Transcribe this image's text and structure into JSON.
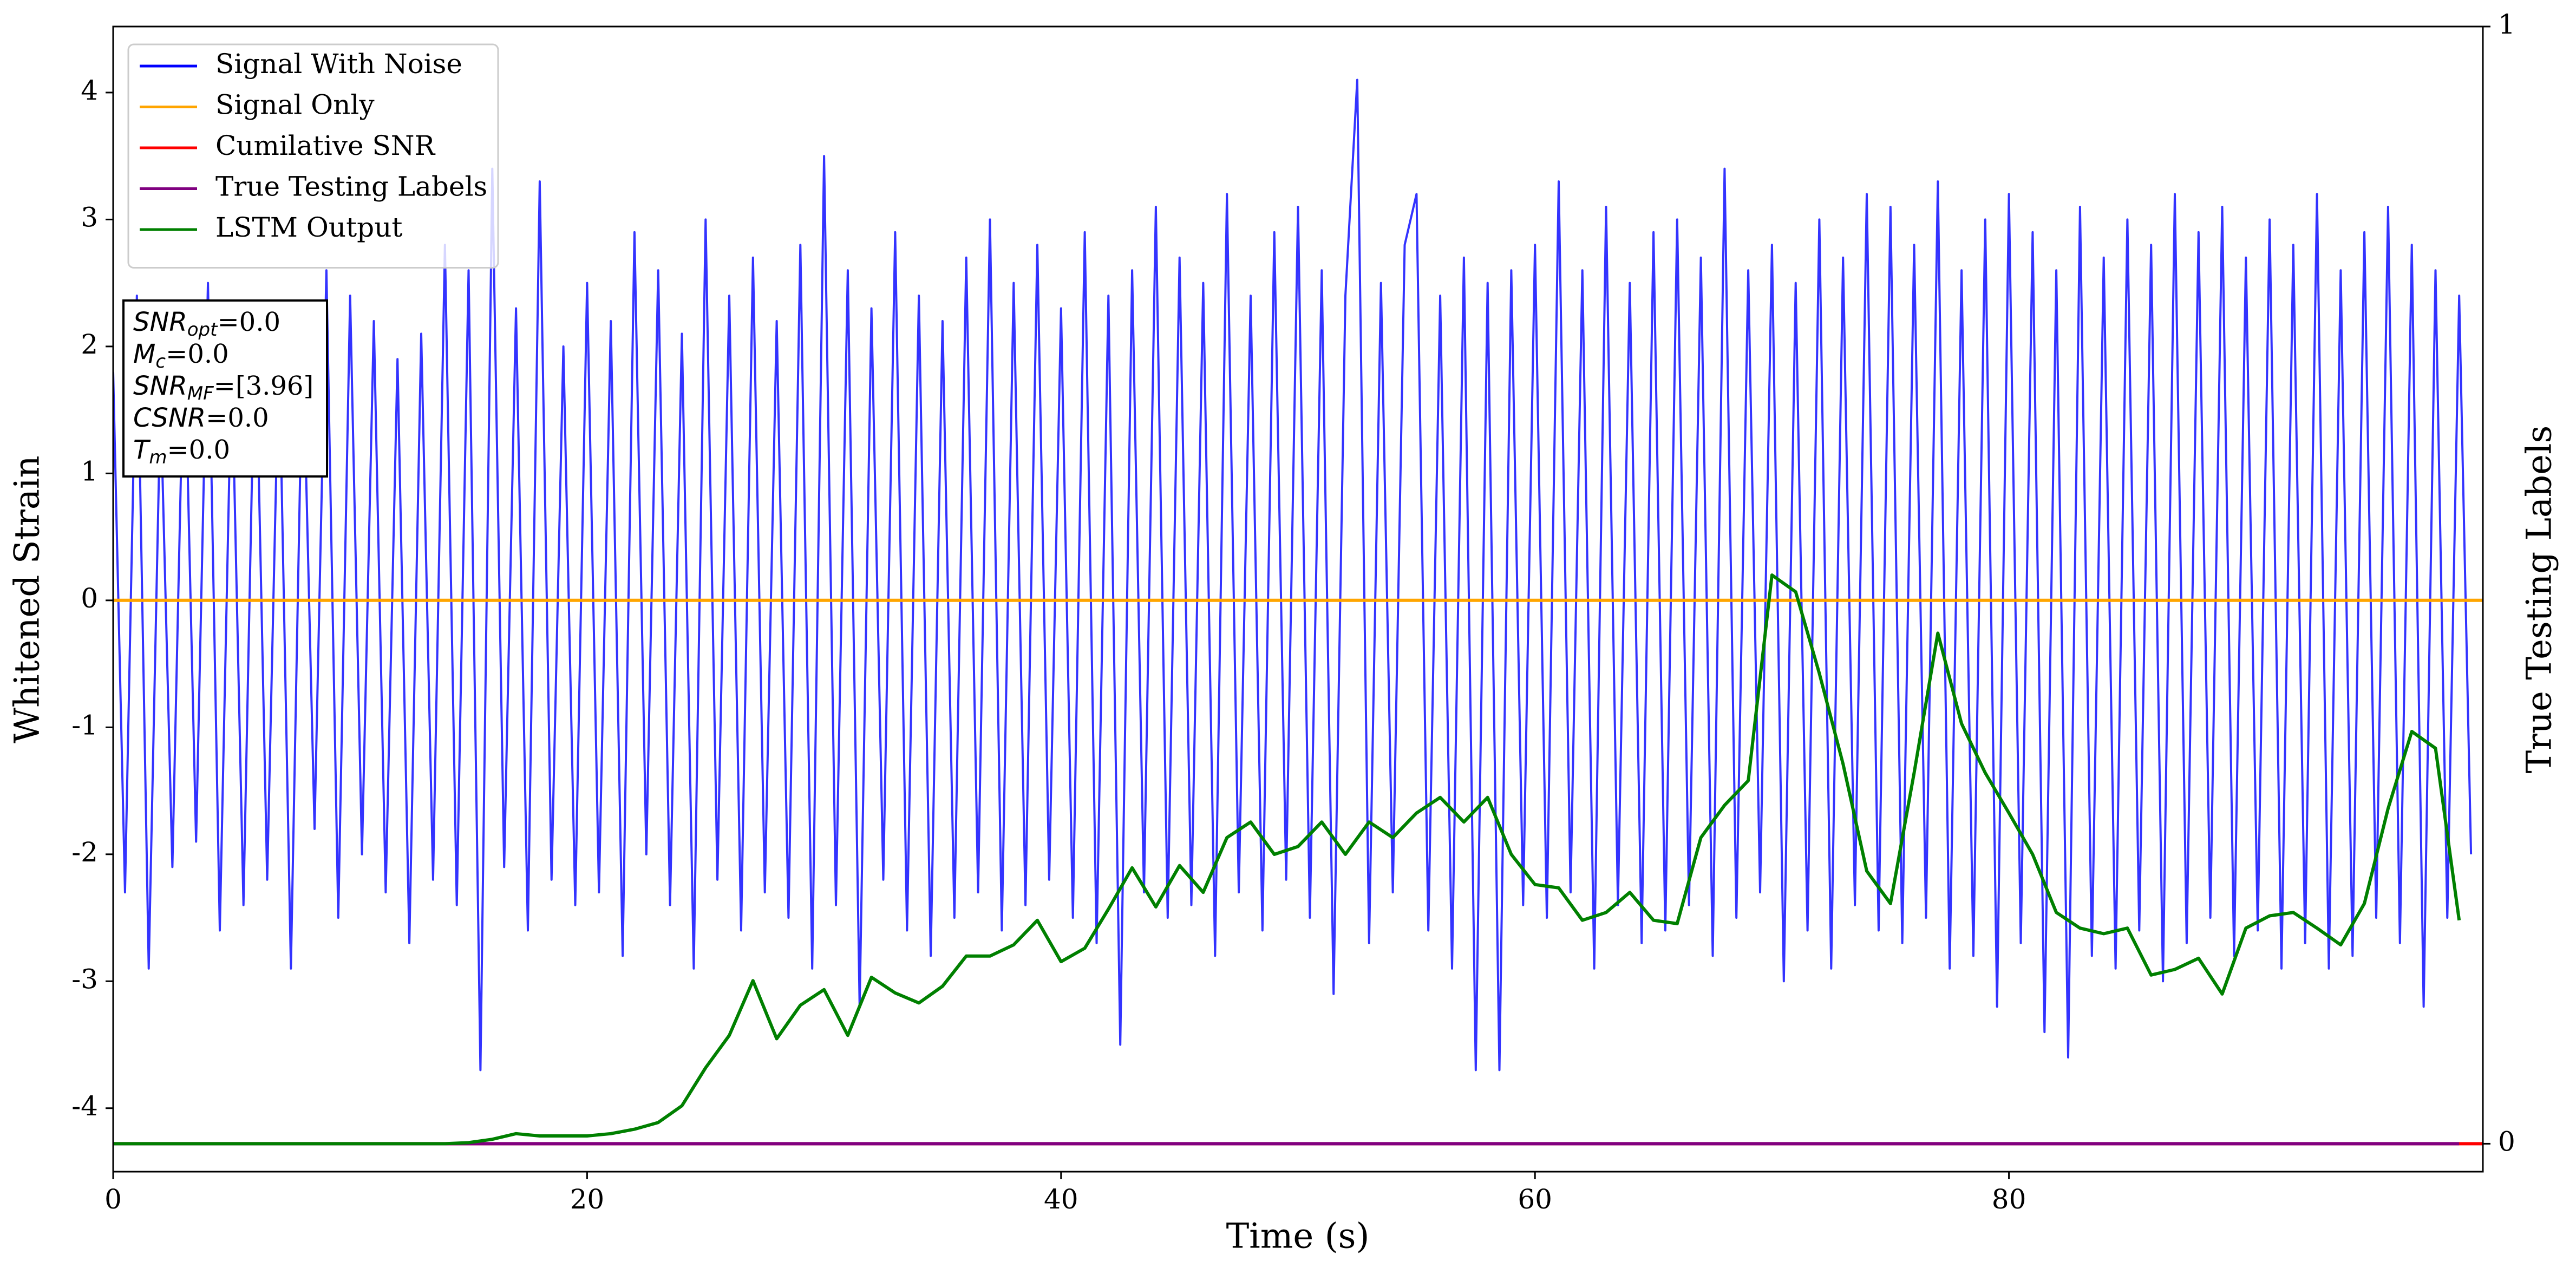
{
  "chart_data": {
    "type": "line",
    "xlabel": "Time (s)",
    "ylabel": "Whitened Strain",
    "y2label": "True Testing Labels",
    "xlim": [
      0,
      100
    ],
    "xticks": [
      0,
      20,
      40,
      60,
      80
    ],
    "ylim": [
      -4.5,
      4.52
    ],
    "yticks": [
      -4,
      -3,
      -2,
      -1,
      0,
      1,
      2,
      3,
      4
    ],
    "y2lim": [
      -0.025,
      1
    ],
    "y2ticks": [
      0,
      1
    ],
    "grid": false,
    "legend": "upper left",
    "annotation": [
      {
        "base": "SNR",
        "sub": "opt",
        "rest": "=0.0"
      },
      {
        "base": "M",
        "sub": "c",
        "rest": "=0.0"
      },
      {
        "base": "SNR",
        "sub": "MF",
        "rest": "=[3.96]"
      },
      {
        "base": "CSNR",
        "rest": "=0.0"
      },
      {
        "base": "T",
        "sub": "m",
        "rest": "=0.0"
      }
    ],
    "series": [
      {
        "name": "Signal With Noise",
        "color": "blue",
        "x": [
          0,
          0.5,
          1,
          1.5,
          2,
          2.5,
          3,
          3.5,
          4,
          4.5,
          5,
          5.5,
          6,
          6.5,
          7,
          7.5,
          8,
          8.5,
          9,
          9.5,
          10,
          10.5,
          11,
          11.5,
          12,
          12.5,
          13,
          13.5,
          14,
          14.5,
          15,
          15.5,
          16,
          16.5,
          17,
          17.5,
          18,
          18.5,
          19,
          19.5,
          20,
          20.5,
          21,
          21.5,
          22,
          22.5,
          23,
          23.5,
          24,
          24.5,
          25,
          25.5,
          26,
          26.5,
          27,
          27.5,
          28,
          28.5,
          29,
          29.5,
          30,
          30.5,
          31,
          31.5,
          32,
          32.5,
          33,
          33.5,
          34,
          34.5,
          35,
          35.5,
          36,
          36.5,
          37,
          37.5,
          38,
          38.5,
          39,
          39.5,
          40,
          40.5,
          41,
          41.5,
          42,
          42.5,
          43,
          43.5,
          44,
          44.5,
          45,
          45.5,
          46,
          46.5,
          47,
          47.5,
          48,
          48.5,
          49,
          49.5,
          50,
          50.5,
          51,
          51.5,
          52,
          52.5,
          53,
          53.5,
          54,
          54.5,
          55,
          55.5,
          56,
          56.5,
          57,
          57.5,
          58,
          58.5,
          59,
          59.5,
          60,
          60.5,
          61,
          61.5,
          62,
          62.5,
          63,
          63.5,
          64,
          64.5,
          65,
          65.5,
          66,
          66.5,
          67,
          67.5,
          68,
          68.5,
          69,
          69.5,
          70,
          70.5,
          71,
          71.5,
          72,
          72.5,
          73,
          73.5,
          74,
          74.5,
          75,
          75.5,
          76,
          76.5,
          77,
          77.5,
          78,
          78.5,
          79,
          79.5,
          80,
          80.5,
          81,
          81.5,
          82,
          82.5,
          83,
          83.5,
          84,
          84.5,
          85,
          85.5,
          86,
          86.5,
          87,
          87.5,
          88,
          88.5,
          89,
          89.5,
          90,
          90.5,
          91,
          91.5,
          92,
          92.5,
          93,
          93.5,
          94,
          94.5,
          95,
          95.5,
          96,
          96.5,
          97,
          97.5,
          98,
          98.5,
          99,
          99.5
        ],
        "values": [
          1.8,
          -2.3,
          2.4,
          -2.9,
          1.6,
          -2.1,
          2.2,
          -1.9,
          2.5,
          -2.6,
          1.9,
          -2.4,
          2.3,
          -2.2,
          2.0,
          -2.9,
          2.1,
          -1.8,
          2.6,
          -2.5,
          2.4,
          -2.0,
          2.2,
          -2.3,
          1.9,
          -2.7,
          2.1,
          -2.2,
          2.8,
          -2.4,
          2.6,
          -3.7,
          3.4,
          -2.1,
          2.3,
          -2.6,
          3.3,
          -2.2,
          2.0,
          -2.4,
          2.5,
          -2.3,
          2.2,
          -2.8,
          2.9,
          -2.0,
          2.6,
          -2.4,
          2.1,
          -2.9,
          3.0,
          -2.2,
          2.4,
          -2.6,
          2.7,
          -2.3,
          2.2,
          -2.5,
          2.8,
          -2.9,
          3.5,
          -2.4,
          2.6,
          -3.2,
          2.3,
          -2.2,
          2.9,
          -2.6,
          2.4,
          -2.8,
          2.2,
          -2.5,
          2.7,
          -2.3,
          3.0,
          -2.6,
          2.5,
          -2.4,
          2.8,
          -2.2,
          2.3,
          -2.5,
          2.9,
          -2.7,
          2.4,
          -3.5,
          2.6,
          -2.3,
          3.1,
          -2.5,
          2.7,
          -2.4,
          2.5,
          -2.8,
          3.2,
          -2.3,
          2.4,
          -2.6,
          2.9,
          -2.2,
          3.1,
          -2.5,
          2.6,
          -3.1,
          2.4,
          4.1,
          -2.7,
          2.5,
          -2.3,
          2.8,
          3.2,
          -2.6,
          2.4,
          -2.9,
          2.7,
          -3.7,
          2.5,
          -3.7,
          2.6,
          -2.4,
          2.8,
          -2.5,
          3.3,
          -2.3,
          2.6,
          -2.9,
          3.1,
          -2.4,
          2.5,
          -2.7,
          2.9,
          -2.6,
          3.0,
          -2.4,
          2.7,
          -2.8,
          3.4,
          -2.5,
          2.6,
          -2.3,
          2.8,
          -3.0,
          2.5,
          -2.6,
          3.0,
          -2.9,
          2.7,
          -2.4,
          3.2,
          -2.6,
          3.1,
          -2.7,
          2.8,
          -2.5,
          3.3,
          -2.9,
          2.6,
          -2.8,
          3.0,
          -3.2,
          3.2,
          -2.7,
          2.9,
          -3.4,
          2.6,
          -3.6,
          3.1,
          -2.8,
          2.7,
          -2.9,
          3.0,
          -2.6,
          2.8,
          -3.0,
          3.2,
          -2.7,
          2.9,
          -2.5,
          3.1,
          -2.8,
          2.7,
          -2.6,
          3.0,
          -2.9,
          2.8,
          -2.7,
          3.2,
          -2.9,
          2.6,
          -2.8,
          2.9,
          -2.5,
          3.1,
          -2.7,
          2.8,
          -3.2,
          2.6,
          -2.5,
          2.4,
          -2.0
        ]
      },
      {
        "name": "Signal Only",
        "color": "orange",
        "x": [
          0,
          100
        ],
        "values": [
          0,
          0
        ]
      },
      {
        "name": "Cumilative SNR",
        "color": "red",
        "axis": "y2",
        "x": [
          0,
          100
        ],
        "values": [
          0,
          0
        ]
      },
      {
        "name": "True Testing Labels",
        "color": "purple",
        "axis": "y2",
        "x": [
          0,
          99
        ],
        "values": [
          0,
          0
        ]
      },
      {
        "name": "LSTM Output",
        "color": "green",
        "axis": "y2",
        "x": [
          0,
          1,
          2,
          3,
          4,
          5,
          6,
          7,
          8,
          9,
          10,
          11,
          12,
          13,
          14,
          15,
          16,
          17,
          18,
          19,
          20,
          21,
          22,
          23,
          24,
          25,
          26,
          27,
          28,
          29,
          30,
          31,
          32,
          33,
          34,
          35,
          36,
          37,
          38,
          39,
          40,
          41,
          42,
          43,
          44,
          45,
          46,
          47,
          48,
          49,
          50,
          51,
          52,
          53,
          54,
          55,
          56,
          57,
          58,
          59,
          60,
          61,
          62,
          63,
          64,
          65,
          66,
          67,
          68,
          69,
          70,
          71,
          72,
          73,
          74,
          75,
          76,
          77,
          78,
          79,
          80,
          81,
          82,
          83,
          84,
          85,
          86,
          87,
          88,
          89,
          90,
          91,
          92,
          93,
          94,
          95,
          96,
          97,
          98,
          99
        ],
        "values": [
          0,
          0,
          0,
          0,
          0,
          0,
          0,
          0,
          0,
          0,
          0,
          0,
          0,
          0,
          0,
          0.001,
          0.004,
          0.009,
          0.007,
          0.007,
          0.007,
          0.009,
          0.013,
          0.019,
          0.034,
          0.068,
          0.097,
          0.146,
          0.094,
          0.124,
          0.138,
          0.097,
          0.149,
          0.135,
          0.126,
          0.141,
          0.168,
          0.168,
          0.178,
          0.2,
          0.163,
          0.175,
          0.21,
          0.247,
          0.212,
          0.249,
          0.225,
          0.274,
          0.288,
          0.259,
          0.266,
          0.288,
          0.259,
          0.288,
          0.274,
          0.296,
          0.31,
          0.288,
          0.31,
          0.259,
          0.232,
          0.229,
          0.2,
          0.207,
          0.225,
          0.2,
          0.197,
          0.274,
          0.303,
          0.325,
          0.509,
          0.494,
          0.421,
          0.34,
          0.244,
          0.215,
          0.332,
          0.457,
          0.376,
          0.332,
          0.296,
          0.259,
          0.207,
          0.193,
          0.188,
          0.193,
          0.151,
          0.156,
          0.166,
          0.134,
          0.193,
          0.204,
          0.207,
          0.193,
          0.178,
          0.215,
          0.3,
          0.369,
          0.354,
          0.2
        ]
      }
    ]
  }
}
